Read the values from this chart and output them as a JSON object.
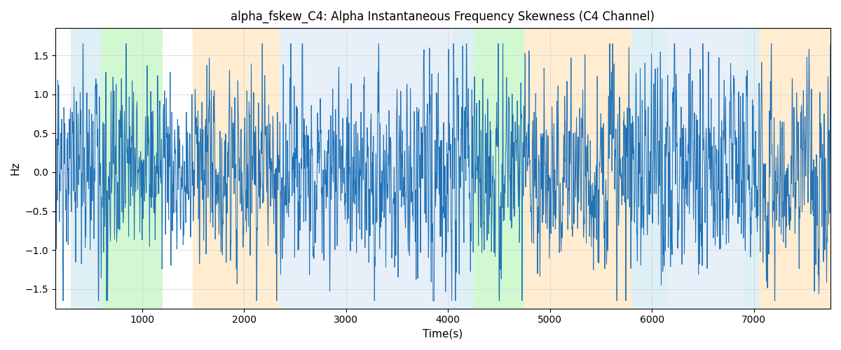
{
  "title": "alpha_fskew_C4: Alpha Instantaneous Frequency Skewness (C4 Channel)",
  "xlabel": "Time(s)",
  "ylabel": "Hz",
  "xlim": [
    150,
    7750
  ],
  "ylim": [
    -1.75,
    1.85
  ],
  "line_color": "#2171b5",
  "line_width": 0.7,
  "grid": true,
  "background_color": "#ffffff",
  "regions": [
    {
      "start": 300,
      "end": 600,
      "color": "#add8e6",
      "alpha": 0.4
    },
    {
      "start": 600,
      "end": 1200,
      "color": "#90ee90",
      "alpha": 0.4
    },
    {
      "start": 1500,
      "end": 2350,
      "color": "#ffd59a",
      "alpha": 0.45
    },
    {
      "start": 2350,
      "end": 4050,
      "color": "#c5d8f0",
      "alpha": 0.4
    },
    {
      "start": 4050,
      "end": 4250,
      "color": "#add8e6",
      "alpha": 0.4
    },
    {
      "start": 4250,
      "end": 4750,
      "color": "#90ee90",
      "alpha": 0.4
    },
    {
      "start": 4750,
      "end": 5800,
      "color": "#ffd59a",
      "alpha": 0.45
    },
    {
      "start": 5800,
      "end": 6150,
      "color": "#add8e6",
      "alpha": 0.4
    },
    {
      "start": 6150,
      "end": 6900,
      "color": "#c5d8f0",
      "alpha": 0.4
    },
    {
      "start": 6900,
      "end": 7050,
      "color": "#add8e6",
      "alpha": 0.4
    },
    {
      "start": 7050,
      "end": 7750,
      "color": "#ffd59a",
      "alpha": 0.45
    }
  ],
  "seed": 42,
  "n_points": 7600,
  "t_start": 150,
  "t_end": 7750,
  "figsize": [
    12.0,
    5.0
  ],
  "dpi": 100
}
